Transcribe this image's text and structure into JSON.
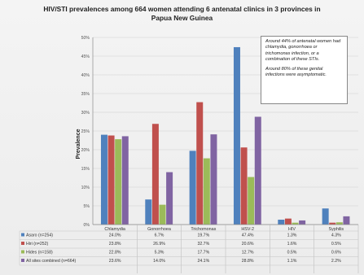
{
  "title_line1": "HIV/STI prevalences among 664 women attending 6 antenatal clinics in 3 provinces in",
  "title_line2": "Papua New Guinea",
  "note": {
    "p1": "Around 44% of antenatal women had chlamydia, gonorrhoea or trichomonas infection, or a combination of these STIs.",
    "p2": "Around 80% of these genital infections were asymptomatic."
  },
  "colors": {
    "asaro": "#4f81bd",
    "hiri": "#c0504d",
    "hides": "#9bbb59",
    "all": "#8064a2"
  },
  "chart_data": {
    "type": "bar",
    "title": "HIV/STI prevalences among 664 women attending 6 antenatal clinics in 3 provinces in Papua New Guinea",
    "ylabel": "Prevalence",
    "ylim": [
      0,
      50
    ],
    "y_ticks": [
      "0%",
      "5%",
      "10%",
      "15%",
      "20%",
      "25%",
      "30%",
      "35%",
      "40%",
      "45%",
      "50%"
    ],
    "categories": [
      "Chlamydia",
      "Gonorrhoea",
      "Trichomonas",
      "HSV-2",
      "HIV",
      "Syphilis"
    ],
    "series": [
      {
        "name": "Asaro (n=254)",
        "key": "asaro",
        "values": [
          24.0,
          6.7,
          19.7,
          47.4,
          1.3,
          4.3
        ],
        "labels": [
          "24.0%",
          "6.7%",
          "19.7%",
          "47.4%",
          "1.3%",
          "4.3%"
        ]
      },
      {
        "name": "Hiri (n=252)",
        "key": "hiri",
        "values": [
          23.8,
          26.9,
          32.7,
          20.6,
          1.6,
          0.5
        ],
        "labels": [
          "23.8%",
          "26.9%",
          "32.7%",
          "20.6%",
          "1.6%",
          "0.5%"
        ]
      },
      {
        "name": "Hides (n=158)",
        "key": "hides",
        "values": [
          22.8,
          5.3,
          17.7,
          12.7,
          0.5,
          0.6
        ],
        "labels": [
          "22.8%",
          "5.3%",
          "17.7%",
          "12.7%",
          "0.5%",
          "0.6%"
        ]
      },
      {
        "name": "All sites combined (n=664)",
        "key": "all",
        "values": [
          23.6,
          14.0,
          24.1,
          28.8,
          1.1,
          2.2
        ],
        "labels": [
          "23.6%",
          "14.0%",
          "24.1%",
          "28.8%",
          "1.1%",
          "2.2%"
        ]
      }
    ],
    "grid": true,
    "legend": "data-table-below"
  }
}
